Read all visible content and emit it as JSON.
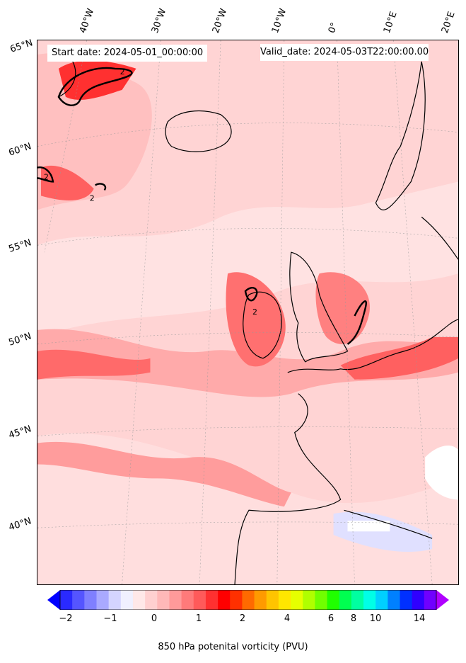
{
  "header": {
    "start_date": "Start date: 2024-05-01_00:00:00",
    "valid_date": "Valid_date: 2024-05-03T22:00:00.00"
  },
  "axes": {
    "lon_labels": [
      "40°W",
      "30°W",
      "20°W",
      "10°W",
      "0°",
      "10°E",
      "20°E"
    ],
    "lat_labels": [
      "65°N",
      "60°N",
      "55°N",
      "50°N",
      "45°N",
      "40°N"
    ]
  },
  "colorbar": {
    "label": "850 hPa potenital vorticity (PVU)",
    "ticks": [
      "−2",
      "−1",
      "0",
      "1",
      "2",
      "4",
      "6",
      "8",
      "10",
      "14"
    ],
    "colors": [
      "#0000ff",
      "#2a2aff",
      "#5555ff",
      "#7f7fff",
      "#a9a9ff",
      "#d4d4ff",
      "#f0f0ff",
      "#ffe8e8",
      "#ffd0d0",
      "#ffb8b8",
      "#ff9a9a",
      "#ff7a7a",
      "#ff5a5a",
      "#ff3030",
      "#ff0000",
      "#ff3000",
      "#ff6a00",
      "#ff9a00",
      "#ffc400",
      "#ffe600",
      "#e6ff00",
      "#b0ff00",
      "#70ff00",
      "#20ff00",
      "#00ff50",
      "#00ffa0",
      "#00ffe6",
      "#00d0ff",
      "#0080ff",
      "#0030ff",
      "#3000ff",
      "#7000ff",
      "#b000ff"
    ],
    "extend": "both"
  },
  "contour_label": "2"
}
